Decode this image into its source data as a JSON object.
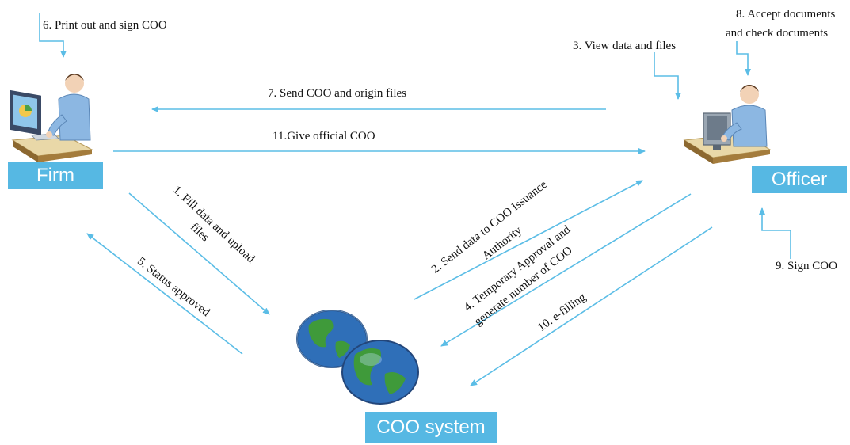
{
  "actors": {
    "firm": "Firm",
    "officer": "Officer",
    "system": "COO system"
  },
  "steps": {
    "s1": [
      "1. Fill data and upload",
      "files"
    ],
    "s2": [
      "2. Send data to COO Issuance",
      "Authority"
    ],
    "s3": "3. View data and files",
    "s4": [
      "4. Temporary Approval and",
      "generate number of COO"
    ],
    "s5": "5. Status approved",
    "s6": "6. Print out and sign COO",
    "s7": "7.  Send COO and origin files",
    "s8": [
      "8.  Accept documents",
      "and check documents"
    ],
    "s9": "9. Sign COO",
    "s10": "10. e-filling",
    "s11": "11.Give official COO"
  },
  "colors": {
    "arrow": "#5bbde6",
    "badge": "#56b8e3",
    "globe_ocean": "#2f6fb8",
    "globe_land": "#3f9a3a"
  },
  "icons": {
    "firm": "person-at-computer-icon",
    "officer": "person-at-computer-icon",
    "system": "globes-icon"
  }
}
